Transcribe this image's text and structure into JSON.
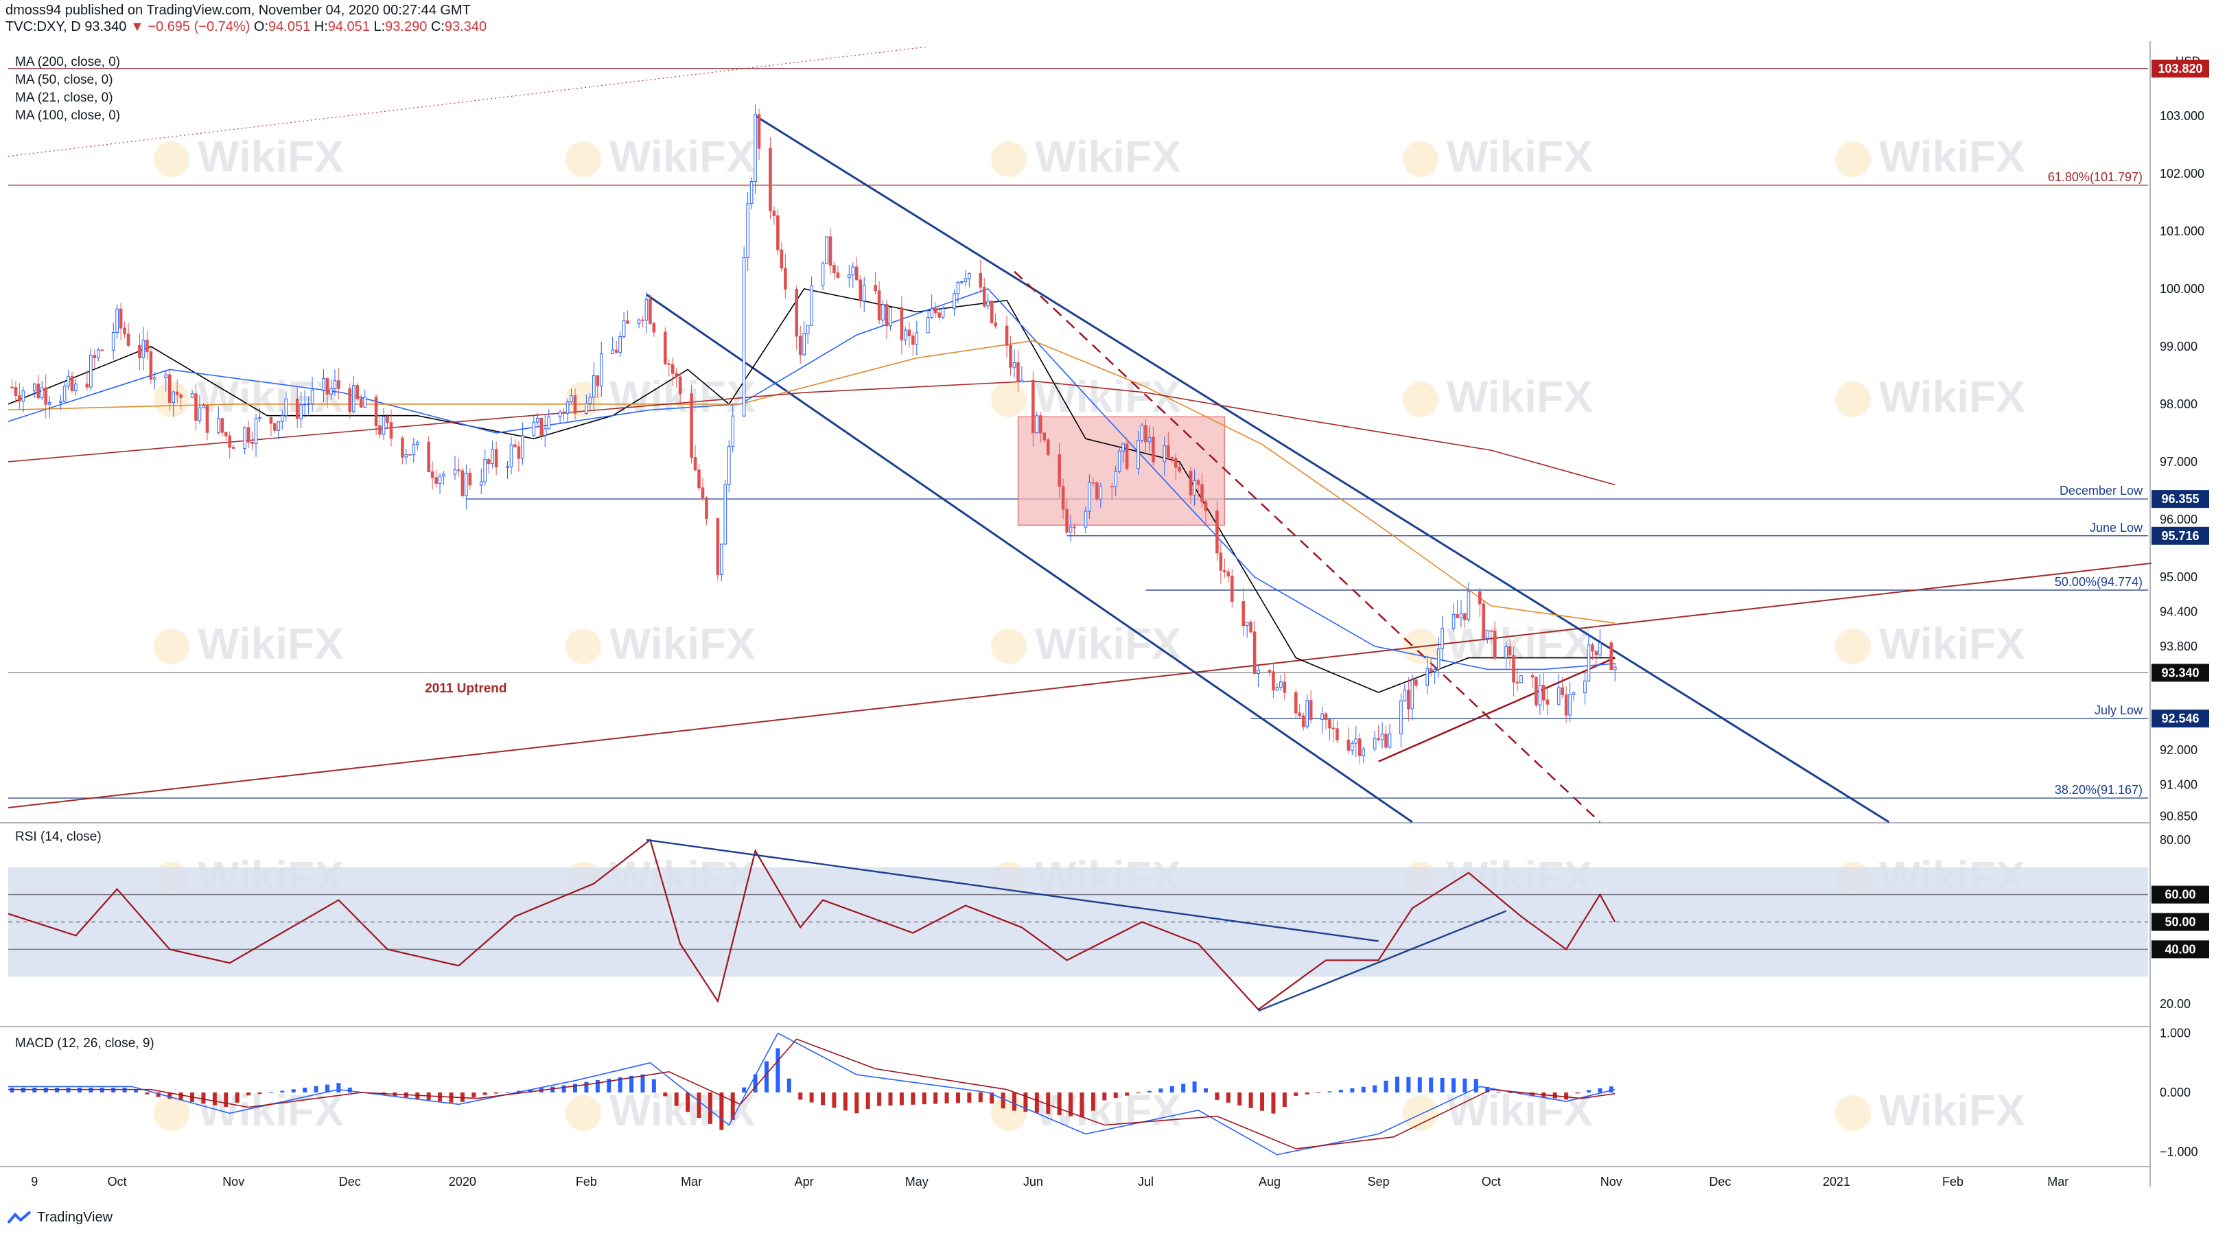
{
  "header": {
    "published_line": "dmoss94 published on TradingView.com, November 04, 2020 00:27:44 GMT",
    "symbol": "TVC:DXY, D",
    "last": "93.340",
    "change": "−0.695 (−0.74%)",
    "o_label": "O:",
    "o_value": "94.051",
    "h_label": "H:",
    "h_value": "94.051",
    "l_label": "L:",
    "l_value": "93.290",
    "c_label": "C:",
    "c_value": "93.340"
  },
  "indicators": [
    "MA (200, close, 0)",
    "MA (50, close, 0)",
    "MA (21, close, 0)",
    "MA (100, close, 0)"
  ],
  "rsi_label": "RSI (14, close)",
  "macd_label": "MACD (12, 26, close, 9)",
  "brand": "TradingView",
  "watermark": "WikiFX",
  "colors": {
    "up": "#2962ff",
    "down": "#e05252",
    "ma200": "#a52a2a",
    "ma100": "#e08a2a",
    "ma50": "#2962ff",
    "ma21": "#000000",
    "rsi_line": "#a0141e",
    "rsi_band": "#d7dff0",
    "channel": "#1c3f8f",
    "level": "#1c3f8f",
    "box": "#f3bcbc",
    "price_tag": "#0d2e72",
    "ceiling_tag": "#b71c1c"
  },
  "chart_data": [
    {
      "type": "candlestick",
      "name_note": "",
      "currency": "USD",
      "y_ticks": [
        103.0,
        102.0,
        101.0,
        100.0,
        99.0,
        98.0,
        97.0,
        96.0,
        95.0,
        94.4,
        93.8,
        92.6,
        92.0,
        91.4,
        90.85
      ],
      "y_tick_labels": [
        "103.000",
        "102.000",
        "101.000",
        "100.000",
        "99.000",
        "98.000",
        "97.000",
        "96.000",
        "95.000",
        "94.400",
        "93.800",
        "92.600",
        "92.000",
        "91.400",
        "90.850"
      ],
      "ylim": [
        90.75,
        104.2
      ],
      "x_ticks": [
        {
          "label": "9",
          "date": "2019-09-09"
        },
        {
          "label": "Oct",
          "date": "2019-10-01"
        },
        {
          "label": "Nov",
          "date": "2019-11-01"
        },
        {
          "label": "Dec",
          "date": "2019-12-02"
        },
        {
          "label": "2020",
          "date": "2020-01-01"
        },
        {
          "label": "Feb",
          "date": "2020-02-03"
        },
        {
          "label": "Mar",
          "date": "2020-03-02"
        },
        {
          "label": "Apr",
          "date": "2020-04-01"
        },
        {
          "label": "May",
          "date": "2020-05-01"
        },
        {
          "label": "Jun",
          "date": "2020-06-01"
        },
        {
          "label": "Jul",
          "date": "2020-07-01"
        },
        {
          "label": "Aug",
          "date": "2020-08-03"
        },
        {
          "label": "Sep",
          "date": "2020-09-01"
        },
        {
          "label": "Oct",
          "date": "2020-10-01"
        },
        {
          "label": "Nov",
          "date": "2020-11-02"
        },
        {
          "label": "Dec",
          "date": "2020-12-01"
        },
        {
          "label": "2021",
          "date": "2021-01-01"
        },
        {
          "label": "Feb",
          "date": "2021-02-01"
        },
        {
          "label": "Mar",
          "date": "2021-03-01"
        }
      ],
      "x_range": [
        "2019-09-02",
        "2021-03-25"
      ],
      "price_path": [
        [
          "2019-09-02",
          98.3
        ],
        [
          "2019-09-20",
          98.2
        ],
        [
          "2019-10-01",
          99.4
        ],
        [
          "2019-10-15",
          98.3
        ],
        [
          "2019-10-31",
          97.4
        ],
        [
          "2019-11-29",
          98.3
        ],
        [
          "2019-12-12",
          97.5
        ],
        [
          "2019-12-31",
          96.6
        ],
        [
          "2020-01-15",
          97.2
        ],
        [
          "2020-02-05",
          98.4
        ],
        [
          "2020-02-19",
          99.8
        ],
        [
          "2020-02-28",
          98.2
        ],
        [
          "2020-03-09",
          94.9
        ],
        [
          "2020-03-19",
          102.8
        ],
        [
          "2020-03-31",
          99.0
        ],
        [
          "2020-04-06",
          100.7
        ],
        [
          "2020-04-30",
          99.0
        ],
        [
          "2020-05-14",
          100.4
        ],
        [
          "2020-05-29",
          98.3
        ],
        [
          "2020-06-10",
          96.0
        ],
        [
          "2020-06-30",
          97.4
        ],
        [
          "2020-07-15",
          96.5
        ],
        [
          "2020-07-31",
          93.4
        ],
        [
          "2020-08-18",
          92.3
        ],
        [
          "2020-09-01",
          92.1
        ],
        [
          "2020-09-25",
          94.6
        ],
        [
          "2020-10-09",
          93.1
        ],
        [
          "2020-10-21",
          92.8
        ],
        [
          "2020-10-30",
          94.0
        ],
        [
          "2020-11-03",
          93.34
        ]
      ],
      "moving_averages": [
        {
          "name": "MA (21, close, 0)",
          "points": [
            [
              "2019-09-02",
              98.0
            ],
            [
              "2019-10-10",
              99.0
            ],
            [
              "2019-11-10",
              97.8
            ],
            [
              "2019-12-20",
              97.8
            ],
            [
              "2020-01-20",
              97.4
            ],
            [
              "2020-02-10",
              97.8
            ],
            [
              "2020-03-01",
              98.6
            ],
            [
              "2020-03-12",
              98.0
            ],
            [
              "2020-04-01",
              100.0
            ],
            [
              "2020-05-01",
              99.6
            ],
            [
              "2020-05-25",
              99.8
            ],
            [
              "2020-06-15",
              97.4
            ],
            [
              "2020-07-10",
              97.0
            ],
            [
              "2020-08-10",
              93.6
            ],
            [
              "2020-09-01",
              93.0
            ],
            [
              "2020-09-25",
              93.6
            ],
            [
              "2020-10-15",
              93.6
            ],
            [
              "2020-11-03",
              93.6
            ]
          ]
        },
        {
          "name": "MA (50, close, 0)",
          "points": [
            [
              "2019-09-02",
              97.7
            ],
            [
              "2019-10-15",
              98.6
            ],
            [
              "2019-11-30",
              98.2
            ],
            [
              "2020-01-10",
              97.5
            ],
            [
              "2020-02-20",
              97.9
            ],
            [
              "2020-03-15",
              98.0
            ],
            [
              "2020-04-15",
              99.2
            ],
            [
              "2020-05-20",
              100.0
            ],
            [
              "2020-06-20",
              97.8
            ],
            [
              "2020-07-30",
              95.0
            ],
            [
              "2020-08-31",
              93.8
            ],
            [
              "2020-09-30",
              93.4
            ],
            [
              "2020-10-15",
              93.4
            ],
            [
              "2020-11-03",
              93.5
            ]
          ]
        },
        {
          "name": "MA (100, close, 0)",
          "points": [
            [
              "2019-09-02",
              97.9
            ],
            [
              "2019-11-01",
              98.0
            ],
            [
              "2020-01-01",
              98.0
            ],
            [
              "2020-03-15",
              98.0
            ],
            [
              "2020-05-01",
              98.8
            ],
            [
              "2020-06-01",
              99.1
            ],
            [
              "2020-07-01",
              98.3
            ],
            [
              "2020-08-01",
              97.3
            ],
            [
              "2020-09-01",
              95.9
            ],
            [
              "2020-10-01",
              94.5
            ],
            [
              "2020-11-03",
              94.2
            ]
          ]
        },
        {
          "name": "MA (200, close, 0)",
          "points": [
            [
              "2019-09-02",
              97.0
            ],
            [
              "2020-01-01",
              97.7
            ],
            [
              "2020-04-01",
              98.2
            ],
            [
              "2020-06-01",
              98.4
            ],
            [
              "2020-07-01",
              98.2
            ],
            [
              "2020-08-15",
              97.7
            ],
            [
              "2020-10-01",
              97.2
            ],
            [
              "2020-11-03",
              96.6
            ]
          ]
        }
      ],
      "levels": [
        {
          "label": "December Low",
          "value": 96.355,
          "tag": "96.355"
        },
        {
          "label": "June Low",
          "value": 95.716,
          "tag": "95.716"
        },
        {
          "label": "July Low",
          "value": 92.546,
          "tag": "92.546"
        },
        {
          "label": "",
          "value": 93.34,
          "tag": "93.340"
        },
        {
          "label": "",
          "value": 103.82,
          "tag": "103.820"
        }
      ],
      "fib_levels": [
        {
          "label": "61.80%(101.797)",
          "value": 101.797
        },
        {
          "label": "50.00%(94.774)",
          "value": 94.774
        },
        {
          "label": "38.20%(91.167)",
          "value": 91.167
        }
      ],
      "annotations": [
        {
          "text": "2011 Uptrend"
        }
      ]
    },
    {
      "type": "line",
      "name": "RSI (14, close)",
      "y_ticks": [
        80.0,
        60.0,
        50.0,
        40.0,
        20.0
      ],
      "y_tick_labels": [
        "80.00",
        "60.00",
        "50.00",
        "40.00",
        "20.00"
      ],
      "ylim": [
        12,
        86
      ],
      "band": [
        30,
        70
      ],
      "tagged": [
        "60.00",
        "50.00",
        "40.00"
      ],
      "path": [
        [
          "2019-09-02",
          53
        ],
        [
          "2019-09-20",
          45
        ],
        [
          "2019-10-01",
          62
        ],
        [
          "2019-10-15",
          40
        ],
        [
          "2019-10-31",
          35
        ],
        [
          "2019-11-29",
          58
        ],
        [
          "2019-12-12",
          40
        ],
        [
          "2019-12-31",
          34
        ],
        [
          "2020-01-15",
          52
        ],
        [
          "2020-02-05",
          64
        ],
        [
          "2020-02-20",
          80
        ],
        [
          "2020-02-28",
          42
        ],
        [
          "2020-03-09",
          21
        ],
        [
          "2020-03-19",
          76
        ],
        [
          "2020-03-31",
          48
        ],
        [
          "2020-04-06",
          58
        ],
        [
          "2020-04-30",
          46
        ],
        [
          "2020-05-14",
          56
        ],
        [
          "2020-05-29",
          48
        ],
        [
          "2020-06-10",
          36
        ],
        [
          "2020-06-30",
          50
        ],
        [
          "2020-07-15",
          42
        ],
        [
          "2020-07-31",
          18
        ],
        [
          "2020-08-18",
          36
        ],
        [
          "2020-09-01",
          36
        ],
        [
          "2020-09-10",
          55
        ],
        [
          "2020-09-25",
          68
        ],
        [
          "2020-10-09",
          52
        ],
        [
          "2020-10-21",
          40
        ],
        [
          "2020-10-30",
          60
        ],
        [
          "2020-11-03",
          50
        ]
      ]
    },
    {
      "type": "bar+line",
      "name": "MACD (12, 26, close, 9)",
      "y_ticks": [
        1.0,
        0.0,
        -1.0
      ],
      "y_tick_labels": [
        "1.000",
        "0.000",
        "−1.000"
      ],
      "ylim": [
        -1.25,
        1.1
      ],
      "macd_path": [
        [
          "2019-09-02",
          0.1
        ],
        [
          "2019-10-05",
          0.1
        ],
        [
          "2019-10-31",
          -0.35
        ],
        [
          "2019-11-29",
          0.05
        ],
        [
          "2019-12-31",
          -0.2
        ],
        [
          "2020-01-31",
          0.2
        ],
        [
          "2020-02-20",
          0.5
        ],
        [
          "2020-03-12",
          -0.55
        ],
        [
          "2020-03-25",
          1.0
        ],
        [
          "2020-04-15",
          0.3
        ],
        [
          "2020-05-20",
          0.0
        ],
        [
          "2020-06-15",
          -0.7
        ],
        [
          "2020-07-15",
          -0.3
        ],
        [
          "2020-08-05",
          -1.05
        ],
        [
          "2020-09-01",
          -0.7
        ],
        [
          "2020-09-28",
          0.1
        ],
        [
          "2020-10-21",
          -0.15
        ],
        [
          "2020-11-03",
          0.05
        ]
      ],
      "signal_path": [
        [
          "2019-09-02",
          0.05
        ],
        [
          "2019-10-10",
          0.05
        ],
        [
          "2019-11-05",
          -0.25
        ],
        [
          "2019-12-05",
          0.0
        ],
        [
          "2020-01-05",
          -0.1
        ],
        [
          "2020-02-05",
          0.15
        ],
        [
          "2020-02-25",
          0.35
        ],
        [
          "2020-03-15",
          -0.2
        ],
        [
          "2020-03-30",
          0.9
        ],
        [
          "2020-04-20",
          0.4
        ],
        [
          "2020-05-25",
          0.05
        ],
        [
          "2020-06-20",
          -0.55
        ],
        [
          "2020-07-20",
          -0.4
        ],
        [
          "2020-08-10",
          -0.95
        ],
        [
          "2020-09-05",
          -0.75
        ],
        [
          "2020-10-01",
          0.05
        ],
        [
          "2020-10-25",
          -0.1
        ],
        [
          "2020-11-03",
          -0.02
        ]
      ]
    }
  ]
}
